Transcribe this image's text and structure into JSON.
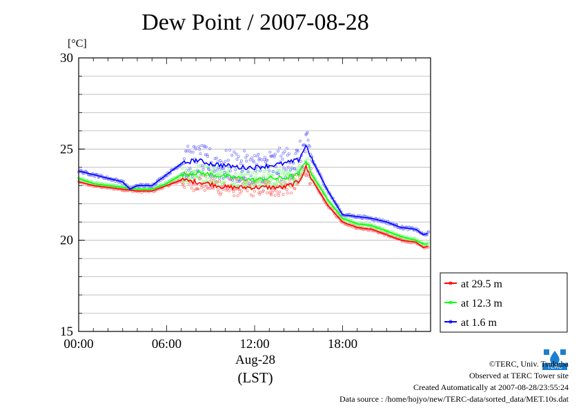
{
  "title": "Dew Point / 2007-08-28",
  "unit_label": "[°C]",
  "xlabel_date": "Aug-28",
  "xlabel_unit": "(LST)",
  "credits": {
    "copyright": "©TERC, Univ. Tsukuba",
    "site": "Observed at TERC Tower site",
    "created": "Created Automatically at 2007-08-28/23:55:24",
    "source": "Data source : /home/hojyo/new/TERC-data/sorted_data/MET.10s.dat"
  },
  "logo_text": "TERC",
  "chart_data": {
    "type": "line",
    "title": "Dew Point / 2007-08-28",
    "xlabel": "Aug-28 (LST)",
    "ylabel": "[°C]",
    "xlim": [
      0,
      24
    ],
    "ylim": [
      15,
      30
    ],
    "x_ticks": [
      "00:00",
      "06:00",
      "12:00",
      "18:00"
    ],
    "y_ticks": [
      "15",
      "20",
      "25",
      "30"
    ],
    "grid": true,
    "legend_position": "bottom-right outside",
    "series": [
      {
        "name": "at 29.5 m",
        "color": "#ff0000",
        "x": [
          0,
          1,
          2,
          3,
          4,
          5,
          6,
          7,
          8,
          9,
          10,
          11,
          12,
          13,
          14,
          15,
          15.5,
          16,
          17,
          18,
          19,
          20,
          21,
          22,
          23,
          23.5,
          23.9
        ],
        "y": [
          23.2,
          23.0,
          22.9,
          22.8,
          22.7,
          22.7,
          23.0,
          23.3,
          23.2,
          23.1,
          22.9,
          22.9,
          22.9,
          22.9,
          22.9,
          23.2,
          24.0,
          23.2,
          21.9,
          21.0,
          20.7,
          20.6,
          20.3,
          20.0,
          19.9,
          19.6,
          19.7
        ]
      },
      {
        "name": "at 12.3 m",
        "color": "#00ff00",
        "x": [
          0,
          1,
          2,
          3,
          4,
          5,
          6,
          7,
          8,
          9,
          10,
          11,
          12,
          13,
          14,
          15,
          15.5,
          16,
          17,
          18,
          19,
          20,
          21,
          22,
          23,
          23.5,
          23.9
        ],
        "y": [
          23.4,
          23.1,
          23.0,
          22.9,
          22.8,
          22.8,
          23.1,
          23.6,
          23.7,
          23.6,
          23.5,
          23.4,
          23.3,
          23.4,
          23.4,
          23.6,
          24.4,
          23.5,
          22.2,
          21.2,
          20.9,
          20.8,
          20.5,
          20.2,
          20.0,
          19.8,
          19.8
        ]
      },
      {
        "name": "at 1.6 m",
        "color": "#0000ff",
        "x": [
          0,
          1,
          2,
          3,
          3.5,
          4,
          5,
          6,
          7,
          8,
          9,
          10,
          11,
          12,
          13,
          14,
          15,
          15.5,
          16,
          17,
          18,
          19,
          20,
          21,
          22,
          23,
          23.5,
          23.9
        ],
        "y": [
          23.8,
          23.6,
          23.4,
          23.2,
          22.8,
          23.0,
          23.0,
          23.6,
          24.2,
          24.4,
          24.2,
          24.1,
          24.0,
          24.0,
          24.1,
          24.2,
          24.4,
          25.2,
          24.3,
          22.7,
          21.4,
          21.3,
          21.2,
          21.0,
          20.7,
          20.6,
          20.3,
          20.4
        ]
      }
    ]
  }
}
